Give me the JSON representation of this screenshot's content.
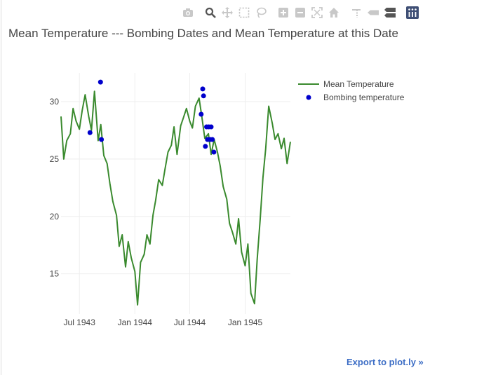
{
  "modebar": {
    "buttons": [
      "camera-icon",
      "zoom-icon",
      "pan-icon",
      "box-select-icon",
      "lasso-select-icon",
      "zoom-in-icon",
      "zoom-out-icon",
      "autoscale-icon",
      "reset-axes-icon",
      "spike-lines-icon",
      "hover-closest-icon",
      "hover-compare-icon",
      "plotly-logo-icon"
    ]
  },
  "export_label": "Export to plot.ly »",
  "chart_data": {
    "type": "line",
    "title": "Mean Temperature --- Bombing Dates and Mean Temperature at this Date",
    "xlabel": "",
    "ylabel": "",
    "x_ticks": [
      "Jul 1943",
      "Jan 1944",
      "Jul 1944",
      "Jan 1945"
    ],
    "x_tick_dates": [
      "1943-07-01",
      "1944-01-01",
      "1944-07-01",
      "1945-01-01"
    ],
    "y_ticks": [
      15,
      20,
      25,
      30
    ],
    "xlim": [
      "1943-05-01",
      "1945-05-31"
    ],
    "ylim": [
      11.5,
      32.5
    ],
    "grid": true,
    "legend_position": "top-right",
    "colors": {
      "mean": "#3a8a2e",
      "bombing": "#0000cc"
    },
    "series": [
      {
        "name": "Mean Temperature",
        "kind": "line",
        "x": [
          "1943-05-01",
          "1943-05-10",
          "1943-05-20",
          "1943-06-01",
          "1943-06-10",
          "1943-06-20",
          "1943-07-01",
          "1943-07-10",
          "1943-07-20",
          "1943-08-01",
          "1943-08-10",
          "1943-08-20",
          "1943-09-01",
          "1943-09-10",
          "1943-09-20",
          "1943-10-01",
          "1943-10-10",
          "1943-10-20",
          "1943-11-01",
          "1943-11-10",
          "1943-11-20",
          "1943-12-01",
          "1943-12-10",
          "1943-12-20",
          "1944-01-01",
          "1944-01-10",
          "1944-01-20",
          "1944-02-01",
          "1944-02-10",
          "1944-02-20",
          "1944-03-01",
          "1944-03-10",
          "1944-03-20",
          "1944-04-01",
          "1944-04-10",
          "1944-04-20",
          "1944-05-01",
          "1944-05-10",
          "1944-05-20",
          "1944-06-01",
          "1944-06-10",
          "1944-06-20",
          "1944-07-01",
          "1944-07-10",
          "1944-07-20",
          "1944-08-01",
          "1944-08-10",
          "1944-08-20",
          "1944-09-01",
          "1944-09-10",
          "1944-09-20",
          "1944-10-01",
          "1944-10-10",
          "1944-10-20",
          "1944-11-01",
          "1944-11-10",
          "1944-11-20",
          "1944-12-01",
          "1944-12-10",
          "1944-12-20",
          "1945-01-01",
          "1945-01-10",
          "1945-01-20",
          "1945-02-01",
          "1945-02-10",
          "1945-02-20",
          "1945-03-01",
          "1945-03-10",
          "1945-03-20",
          "1945-04-01",
          "1945-04-10",
          "1945-04-20",
          "1945-05-01",
          "1945-05-10",
          "1945-05-20",
          "1945-05-31"
        ],
        "values": [
          28.7,
          25.0,
          26.6,
          27.2,
          29.4,
          28.3,
          27.6,
          29.2,
          30.6,
          28.7,
          27.5,
          30.9,
          26.6,
          28.0,
          25.3,
          24.6,
          22.9,
          21.3,
          20.1,
          17.4,
          18.4,
          15.6,
          17.8,
          16.4,
          15.2,
          12.3,
          16.0,
          16.7,
          18.4,
          17.6,
          20.1,
          21.4,
          23.2,
          22.7,
          24.1,
          25.6,
          26.2,
          27.8,
          25.4,
          27.9,
          28.6,
          29.4,
          28.3,
          27.7,
          29.6,
          30.3,
          28.7,
          26.8,
          27.2,
          25.4,
          26.7,
          25.6,
          24.4,
          22.6,
          21.5,
          19.4,
          18.6,
          17.6,
          19.8,
          16.9,
          15.7,
          17.6,
          13.3,
          12.4,
          16.3,
          19.8,
          23.4,
          25.9,
          29.6,
          28.1,
          26.7,
          27.2,
          25.9,
          26.8,
          24.6,
          26.5
        ]
      },
      {
        "name": "Bombing temperature",
        "kind": "markers",
        "x": [
          "1943-08-05",
          "1943-09-09",
          "1943-09-12",
          "1944-08-08",
          "1944-08-13",
          "1944-08-16",
          "1944-08-22",
          "1944-08-26",
          "1944-08-29",
          "1944-09-02",
          "1944-09-06",
          "1944-09-10",
          "1944-09-14",
          "1944-09-19"
        ],
        "values": [
          27.3,
          31.7,
          26.7,
          28.9,
          31.1,
          30.5,
          26.1,
          27.8,
          26.7,
          27.8,
          26.7,
          27.8,
          26.7,
          25.6
        ]
      }
    ]
  }
}
